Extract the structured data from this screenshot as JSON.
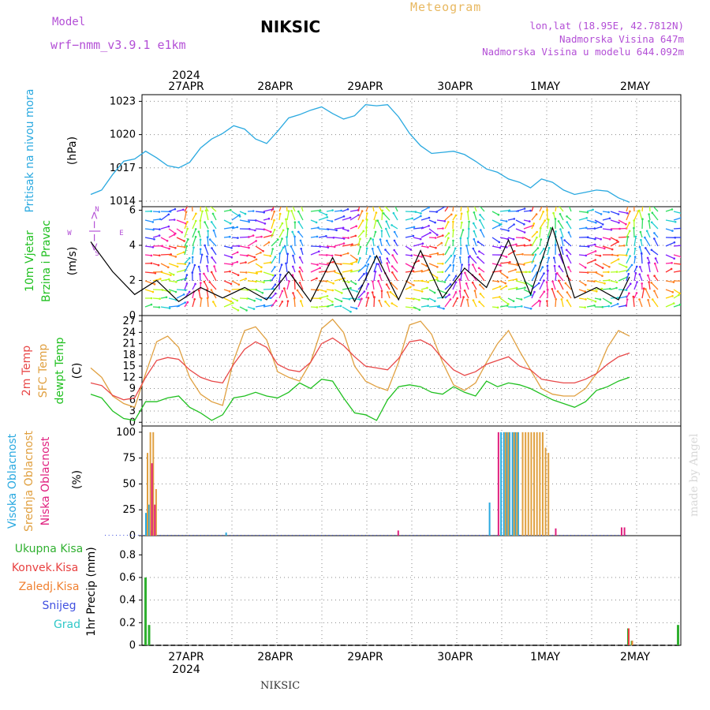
{
  "header": {
    "title": "NIKSIC",
    "model_label": "Model",
    "model_name": "wrf−nmm_v3.9.1  e1km",
    "meteogram": "Meteogram",
    "lonlat": "lon,lat (18.95E, 42.7812N)",
    "elevation": "Nadmorska Visina 647m",
    "model_elevation": "Nadmorska Visina u modelu 644.092m",
    "footer": "NIKSIC",
    "credit": "made by Angel"
  },
  "time_axis": {
    "year": "2024",
    "dates": [
      "27APR",
      "28APR",
      "29APR",
      "30APR",
      "1MAY",
      "2MAY"
    ]
  },
  "colors": {
    "pressure": "#2aa9e0",
    "t2m": "#e84848",
    "sfc": "#e0a040",
    "dew": "#20c020",
    "high": "#2aa9e0",
    "mid": "#e0a040",
    "low": "#e0207f",
    "total": "#30b030",
    "conv": "#e84040",
    "frz": "#f08030",
    "snow": "#4050e0",
    "hail": "#30c8c8",
    "purple": "#b34fd6"
  },
  "panels": {
    "pressure": {
      "label1": "Pritisak na nivou mora",
      "unit": "(hPa)",
      "ticks": [
        "1023",
        "1020",
        "1017",
        "1014"
      ]
    },
    "wind": {
      "label1": "10m Vjetar",
      "label2": "Brzina i Pravac",
      "unit": "(m/s)",
      "ticks": [
        "6",
        "4",
        "2",
        "0"
      ],
      "compass": {
        "n": "N",
        "w": "W",
        "e": "E",
        "s": "S",
        "arrows": "<−|−>"
      }
    },
    "temp": {
      "label1": "2m Temp",
      "label2": "SFC Temp",
      "label3": "dewpt Temp",
      "unit": "(C)",
      "ticks": [
        "27",
        "24",
        "21",
        "18",
        "15",
        "12",
        "9",
        "6",
        "3",
        "0"
      ]
    },
    "cloud": {
      "label1": "Visoka Oblacnost",
      "label2": "Srednja Oblacnost",
      "label3": "Niska Oblacnost",
      "unit": "(%)",
      "ticks": [
        "100",
        "75",
        "50",
        "25",
        "0"
      ]
    },
    "precip": {
      "labels": [
        "Ukupna Kisa",
        "Konvek.Kisa",
        "Zaledj.Kisa",
        "Snijeg",
        "Grad"
      ],
      "unit": "1hr Precip (mm)",
      "ticks": [
        "0.8",
        "0.6",
        "0.4",
        "0.2",
        "0"
      ]
    }
  },
  "chart_data": [
    {
      "type": "line",
      "title": "Pritisak na nivou mora",
      "ylabel": "(hPa)",
      "ylim": [
        1013.5,
        1023.6
      ],
      "x_hours": [
        0,
        3,
        6,
        9,
        12,
        15,
        18,
        21,
        24,
        27,
        30,
        33,
        36,
        39,
        42,
        45,
        48,
        51,
        54,
        57,
        60,
        63,
        66,
        69,
        72,
        75,
        78,
        81,
        84,
        87,
        90,
        93,
        96,
        99,
        102,
        105,
        108,
        111,
        114,
        117,
        120,
        123,
        126,
        129,
        132,
        135,
        138,
        141,
        144,
        147
      ],
      "series": [
        {
          "name": "Pritisak na nivou mora",
          "values": [
            1014.6,
            1015.0,
            1016.4,
            1017.6,
            1017.8,
            1018.5,
            1017.9,
            1017.2,
            1017.0,
            1017.5,
            1018.8,
            1019.6,
            1020.1,
            1020.8,
            1020.5,
            1019.6,
            1019.2,
            1020.3,
            1021.5,
            1021.8,
            1022.2,
            1022.5,
            1021.9,
            1021.4,
            1021.7,
            1022.7,
            1022.6,
            1022.7,
            1021.6,
            1020.1,
            1019.0,
            1018.3,
            1018.4,
            1018.5,
            1018.2,
            1017.6,
            1016.9,
            1016.6,
            1016.0,
            1015.7,
            1015.2,
            1016.0,
            1015.7,
            1015.0,
            1014.6,
            1014.8,
            1015.0,
            1014.9,
            1014.3,
            1013.9
          ]
        }
      ]
    },
    {
      "type": "line",
      "title": "10m Vjetar",
      "ylabel": "(m/s)",
      "ylim": [
        0,
        6.2
      ],
      "x_hours": [
        0,
        6,
        12,
        18,
        24,
        30,
        36,
        42,
        48,
        54,
        60,
        66,
        72,
        78,
        84,
        90,
        96,
        102,
        108,
        114,
        120,
        126,
        132,
        138,
        144,
        147
      ],
      "series": [
        {
          "name": "10m Vjetar",
          "values": [
            4.2,
            2.5,
            1.2,
            2.0,
            0.8,
            1.6,
            1.0,
            1.6,
            0.9,
            2.5,
            0.8,
            3.3,
            0.8,
            3.4,
            0.9,
            3.7,
            1.0,
            2.7,
            1.6,
            4.3,
            1.2,
            5.0,
            1.0,
            1.6,
            0.9,
            2.2
          ]
        }
      ]
    },
    {
      "type": "line",
      "title": "2m Temp / SFC Temp / dewpt Temp",
      "ylabel": "(C)",
      "ylim": [
        -1,
        28.5
      ],
      "x_hours": [
        0,
        3,
        6,
        9,
        12,
        15,
        18,
        21,
        24,
        27,
        30,
        33,
        36,
        39,
        42,
        45,
        48,
        51,
        54,
        57,
        60,
        63,
        66,
        69,
        72,
        75,
        78,
        81,
        84,
        87,
        90,
        93,
        96,
        99,
        102,
        105,
        108,
        111,
        114,
        117,
        120,
        123,
        126,
        129,
        132,
        135,
        138,
        141,
        144,
        147
      ],
      "series": [
        {
          "name": "2m Temp",
          "values": [
            10.5,
            9.8,
            7.2,
            6.0,
            6.5,
            12.0,
            16.5,
            17.3,
            16.8,
            14.0,
            12.0,
            11.0,
            10.5,
            15.5,
            19.5,
            21.5,
            20.0,
            15.5,
            14.0,
            13.5,
            16.0,
            21.0,
            22.5,
            20.5,
            17.5,
            15.0,
            14.5,
            14.0,
            17.0,
            21.5,
            22.0,
            20.5,
            17.0,
            14.0,
            12.5,
            13.5,
            15.5,
            16.5,
            17.5,
            15.0,
            14.0,
            11.5,
            11.0,
            10.5,
            10.5,
            11.5,
            13.0,
            15.5,
            17.5,
            18.5
          ]
        },
        {
          "name": "SFC Temp",
          "values": [
            14.5,
            12.0,
            7.0,
            5.0,
            4.0,
            13.0,
            21.5,
            23.0,
            20.0,
            12.0,
            7.5,
            5.5,
            4.5,
            16.5,
            24.5,
            25.5,
            22.0,
            13.5,
            12.0,
            11.0,
            16.0,
            25.0,
            27.5,
            24.0,
            15.0,
            11.0,
            9.5,
            8.5,
            16.0,
            26.0,
            27.0,
            23.5,
            16.0,
            10.0,
            8.5,
            10.5,
            16.0,
            21.0,
            24.5,
            19.0,
            14.0,
            9.0,
            7.5,
            7.0,
            7.0,
            9.0,
            13.0,
            20.0,
            24.5,
            23.0
          ]
        },
        {
          "name": "dewpt Temp",
          "values": [
            7.5,
            6.5,
            3.0,
            1.0,
            0.5,
            5.5,
            5.5,
            6.5,
            7.0,
            4.0,
            2.5,
            0.5,
            2.0,
            6.5,
            7.0,
            8.0,
            7.0,
            6.5,
            8.0,
            10.5,
            9.0,
            11.5,
            11.0,
            6.5,
            2.5,
            2.0,
            0.5,
            6.0,
            9.5,
            10.0,
            9.5,
            8.0,
            7.5,
            9.5,
            8.0,
            7.0,
            11.0,
            9.5,
            10.5,
            10.0,
            9.0,
            7.5,
            6.0,
            5.0,
            4.0,
            5.5,
            8.5,
            9.5,
            11.0,
            12.0
          ]
        }
      ]
    },
    {
      "type": "bar",
      "title": "Oblacnost",
      "ylabel": "(%)",
      "ylim": [
        0,
        100
      ],
      "series": [
        {
          "name": "Visoka Oblacnost",
          "points": [
            [
              0,
              22
            ],
            [
              1,
              30
            ],
            [
              2,
              5
            ],
            [
              28,
              3
            ],
            [
              120,
              32
            ],
            [
              124,
              100
            ],
            [
              125,
              100
            ],
            [
              126,
              100
            ],
            [
              127,
              100
            ],
            [
              128,
              100
            ],
            [
              129,
              100
            ],
            [
              130,
              100
            ]
          ]
        },
        {
          "name": "Srednja Oblacnost",
          "points": [
            [
              0,
              80
            ],
            [
              1,
              100
            ],
            [
              2,
              100
            ],
            [
              3,
              45
            ],
            [
              125,
              100
            ],
            [
              126,
              100
            ],
            [
              128,
              100
            ],
            [
              129,
              100
            ],
            [
              131,
              100
            ],
            [
              132,
              100
            ],
            [
              133,
              100
            ],
            [
              134,
              100
            ],
            [
              135,
              100
            ],
            [
              136,
              100
            ],
            [
              137,
              100
            ],
            [
              138,
              100
            ],
            [
              139,
              85
            ],
            [
              140,
              80
            ]
          ]
        },
        {
          "name": "Niska Oblacnost",
          "points": [
            [
              1,
              70
            ],
            [
              2,
              30
            ],
            [
              87,
              5
            ],
            [
              122,
              100
            ],
            [
              142,
              7
            ],
            [
              165,
              8
            ],
            [
              166,
              8
            ]
          ]
        }
      ]
    },
    {
      "type": "bar",
      "title": "1hr Precip",
      "ylabel": "1hr Precip (mm)",
      "ylim": [
        0,
        0.97
      ],
      "series": [
        {
          "name": "Ukupna Kisa",
          "points": [
            [
              0,
              0.6
            ],
            [
              1,
              0.18
            ],
            [
              136,
              0.15
            ],
            [
              137,
              0.04
            ],
            [
              150,
              0.18
            ]
          ]
        },
        {
          "name": "Konvek.Kisa",
          "points": [
            [
              136,
              0.15
            ]
          ]
        },
        {
          "name": "Zaledj.Kisa",
          "points": [
            [
              137,
              0.04
            ]
          ]
        },
        {
          "name": "Snijeg",
          "points": []
        },
        {
          "name": "Grad",
          "points": []
        }
      ]
    }
  ]
}
